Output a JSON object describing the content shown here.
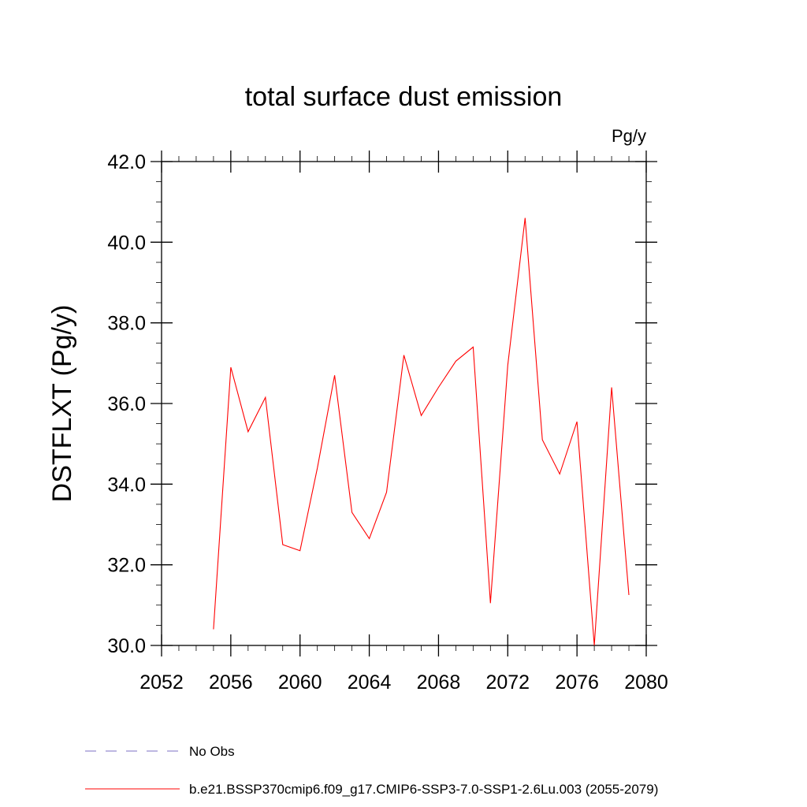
{
  "chart_data": {
    "type": "line",
    "title": "total surface dust emission",
    "units": "Pg/y",
    "xlabel": "",
    "ylabel": "DSTFLXT  (Pg/y)",
    "xlim": [
      2052,
      2080
    ],
    "ylim": [
      30.0,
      42.0
    ],
    "xticks": [
      2052,
      2056,
      2060,
      2064,
      2068,
      2072,
      2076,
      2080
    ],
    "xtick_labels": [
      "2052",
      "2056",
      "2060",
      "2064",
      "2068",
      "2072",
      "2076",
      "2080"
    ],
    "yticks": [
      30.0,
      32.0,
      34.0,
      36.0,
      38.0,
      40.0,
      42.0
    ],
    "ytick_labels": [
      "30.0",
      "32.0",
      "34.0",
      "36.0",
      "38.0",
      "40.0",
      "42.0"
    ],
    "grid": false,
    "legend_position": "bottom-left",
    "series": [
      {
        "name": "b.e21.BSSP370cmip6.f09_g17.CMIP6-SSP3-7.0-SSP1-2.6Lu.003 (2055-2079)",
        "color": "#ff0000",
        "style": "solid",
        "x": [
          2055,
          2056,
          2057,
          2058,
          2059,
          2060,
          2061,
          2062,
          2063,
          2064,
          2065,
          2066,
          2067,
          2068,
          2069,
          2070,
          2071,
          2072,
          2073,
          2074,
          2075,
          2076,
          2077,
          2078,
          2079
        ],
        "values": [
          30.4,
          36.9,
          35.3,
          36.15,
          32.5,
          32.35,
          34.4,
          36.7,
          33.3,
          32.65,
          33.8,
          37.2,
          35.7,
          36.4,
          37.05,
          37.4,
          31.05,
          36.95,
          40.6,
          35.1,
          34.25,
          35.55,
          30.0,
          36.4,
          31.25
        ]
      }
    ],
    "legend": [
      {
        "label": "No Obs",
        "color": "#7b6fc4",
        "style": "dashed"
      },
      {
        "label": "b.e21.BSSP370cmip6.f09_g17.CMIP6-SSP3-7.0-SSP1-2.6Lu.003 (2055-2079)",
        "color": "#ff0000",
        "style": "solid"
      }
    ]
  }
}
